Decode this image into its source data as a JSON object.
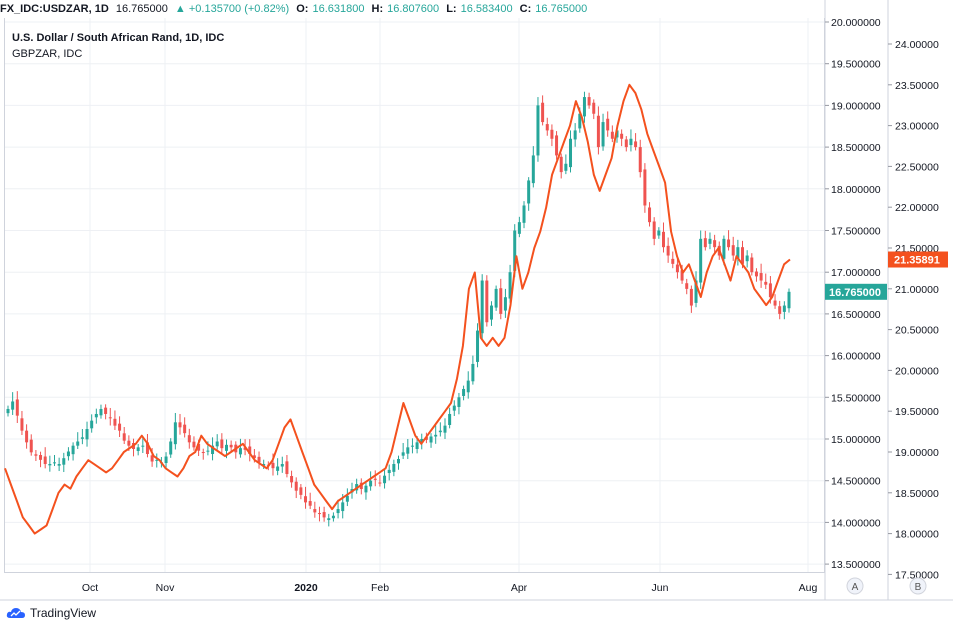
{
  "header": {
    "symbol": "FX_IDC:USDZAR, 1D",
    "last": "16.765000",
    "change": "▲ +0.135700 (+0.82%)",
    "open_label": "O:",
    "open": "16.631800",
    "high_label": "H:",
    "high": "16.807600",
    "low_label": "L:",
    "low": "16.583400",
    "close_label": "C:",
    "close": "16.765000"
  },
  "legend": {
    "main": "U.S. Dollar / South African Rand, 1D, IDC",
    "compare": "GBPZAR, IDC"
  },
  "footer": {
    "brand": "TradingView"
  },
  "axis_buttons": {
    "a": "A",
    "b": "B"
  },
  "chart_data": {
    "type": "candlestick_with_compare_line",
    "x_labels": [
      "Oct",
      "Nov",
      "2020",
      "Feb",
      "Apr",
      "Jun",
      "Aug"
    ],
    "left_axis": {
      "min": 13.5,
      "max": 20.0,
      "ticks": [
        "13.500000",
        "14.000000",
        "14.500000",
        "15.000000",
        "15.500000",
        "16.000000",
        "16.500000",
        "17.000000",
        "17.500000",
        "18.000000",
        "18.500000",
        "19.000000",
        "19.500000",
        "20.000000"
      ]
    },
    "right_axis": {
      "min": 17.5,
      "max": 24.0,
      "ticks": [
        "17.50000",
        "18.00000",
        "18.50000",
        "19.00000",
        "19.50000",
        "20.00000",
        "20.50000",
        "21.00000",
        "21.50000",
        "22.00000",
        "22.50000",
        "23.00000",
        "23.50000",
        "24.00000"
      ]
    },
    "last_price_tags": {
      "usdzar": "16.765000",
      "gbpzar": "21.35891"
    },
    "colors": {
      "up": "#26a69a",
      "down": "#ef5350",
      "compare_line": "#f4511e",
      "grid": "#eef0f4"
    },
    "usdzar_close": [
      15.36,
      15.45,
      15.28,
      15.1,
      14.96,
      14.84,
      14.8,
      14.75,
      14.7,
      14.7,
      14.72,
      14.7,
      14.77,
      14.85,
      14.92,
      14.97,
      15.02,
      15.12,
      15.22,
      15.3,
      15.36,
      15.3,
      15.25,
      15.16,
      15.1,
      14.98,
      14.92,
      14.88,
      14.9,
      14.92,
      14.82,
      14.73,
      14.75,
      14.72,
      14.79,
      14.97,
      15.2,
      15.14,
      15.07,
      14.96,
      14.9,
      14.86,
      14.84,
      14.86,
      14.92,
      14.97,
      14.89,
      14.93,
      14.9,
      14.84,
      14.89,
      14.87,
      14.82,
      14.77,
      14.72,
      14.7,
      14.69,
      14.65,
      14.67,
      14.7,
      14.58,
      14.48,
      14.38,
      14.33,
      14.24,
      14.2,
      14.12,
      14.1,
      14.06,
      14.05,
      14.08,
      14.16,
      14.24,
      14.32,
      14.4,
      14.46,
      14.4,
      14.44,
      14.5,
      14.51,
      14.47,
      14.56,
      14.63,
      14.7,
      14.76,
      14.84,
      14.9,
      14.92,
      14.96,
      15.0,
      14.99,
      15.03,
      15.05,
      15.1,
      15.16,
      15.3,
      15.4,
      15.5,
      15.6,
      15.7,
      15.9,
      16.3,
      16.9,
      16.4,
      16.6,
      16.8,
      16.5,
      16.7,
      17.0,
      17.5,
      17.6,
      17.8,
      18.1,
      18.4,
      19.0,
      18.8,
      18.7,
      18.6,
      18.4,
      18.2,
      18.3,
      18.6,
      18.7,
      18.9,
      19.1,
      19.0,
      18.9,
      18.5,
      18.8,
      18.7,
      18.6,
      18.7,
      18.6,
      18.5,
      18.6,
      18.5,
      18.2,
      17.8,
      17.6,
      17.4,
      17.5,
      17.3,
      17.2,
      17.1,
      17.0,
      16.9,
      16.8,
      16.6,
      16.9,
      17.4,
      17.3,
      17.4,
      17.3,
      17.2,
      17.4,
      17.3,
      17.2,
      17.3,
      17.1,
      17.2,
      17.0,
      16.95,
      16.9,
      16.85,
      16.7,
      16.6,
      16.5,
      16.6,
      16.765
    ],
    "gbpzar_close": [
      18.8,
      18.6,
      18.4,
      18.2,
      18.1,
      18.0,
      18.05,
      18.1,
      18.3,
      18.5,
      18.6,
      18.55,
      18.7,
      18.8,
      18.9,
      18.85,
      18.8,
      18.75,
      18.8,
      18.9,
      19.0,
      19.05,
      19.1,
      19.2,
      19.1,
      18.95,
      18.9,
      18.8,
      18.75,
      18.7,
      18.8,
      18.95,
      19.0,
      19.2,
      19.1,
      19.05,
      19.0,
      18.95,
      19.0,
      19.05,
      19.1,
      19.0,
      18.9,
      18.85,
      18.8,
      18.9,
      19.1,
      19.3,
      19.4,
      19.2,
      19.0,
      18.8,
      18.6,
      18.5,
      18.4,
      18.3,
      18.4,
      18.45,
      18.5,
      18.55,
      18.6,
      18.65,
      18.7,
      18.75,
      18.8,
      19.0,
      19.3,
      19.6,
      19.4,
      19.2,
      19.1,
      19.2,
      19.3,
      19.4,
      19.5,
      19.6,
      19.9,
      20.3,
      21.0,
      21.2,
      20.4,
      20.3,
      20.4,
      20.3,
      20.4,
      20.8,
      21.4,
      21.0,
      21.2,
      21.5,
      21.7,
      22.0,
      22.4,
      22.6,
      22.8,
      23.0,
      23.3,
      23.1,
      22.8,
      22.4,
      22.2,
      22.4,
      22.6,
      23.0,
      23.3,
      23.5,
      23.4,
      23.2,
      22.9,
      22.7,
      22.5,
      22.3,
      21.7,
      21.4,
      21.2,
      21.3,
      21.1,
      20.9,
      21.2,
      21.4,
      21.5,
      21.3,
      21.1,
      21.4,
      21.3,
      21.2,
      21.0,
      20.9,
      20.8,
      20.9,
      21.1,
      21.3,
      21.359
    ]
  }
}
